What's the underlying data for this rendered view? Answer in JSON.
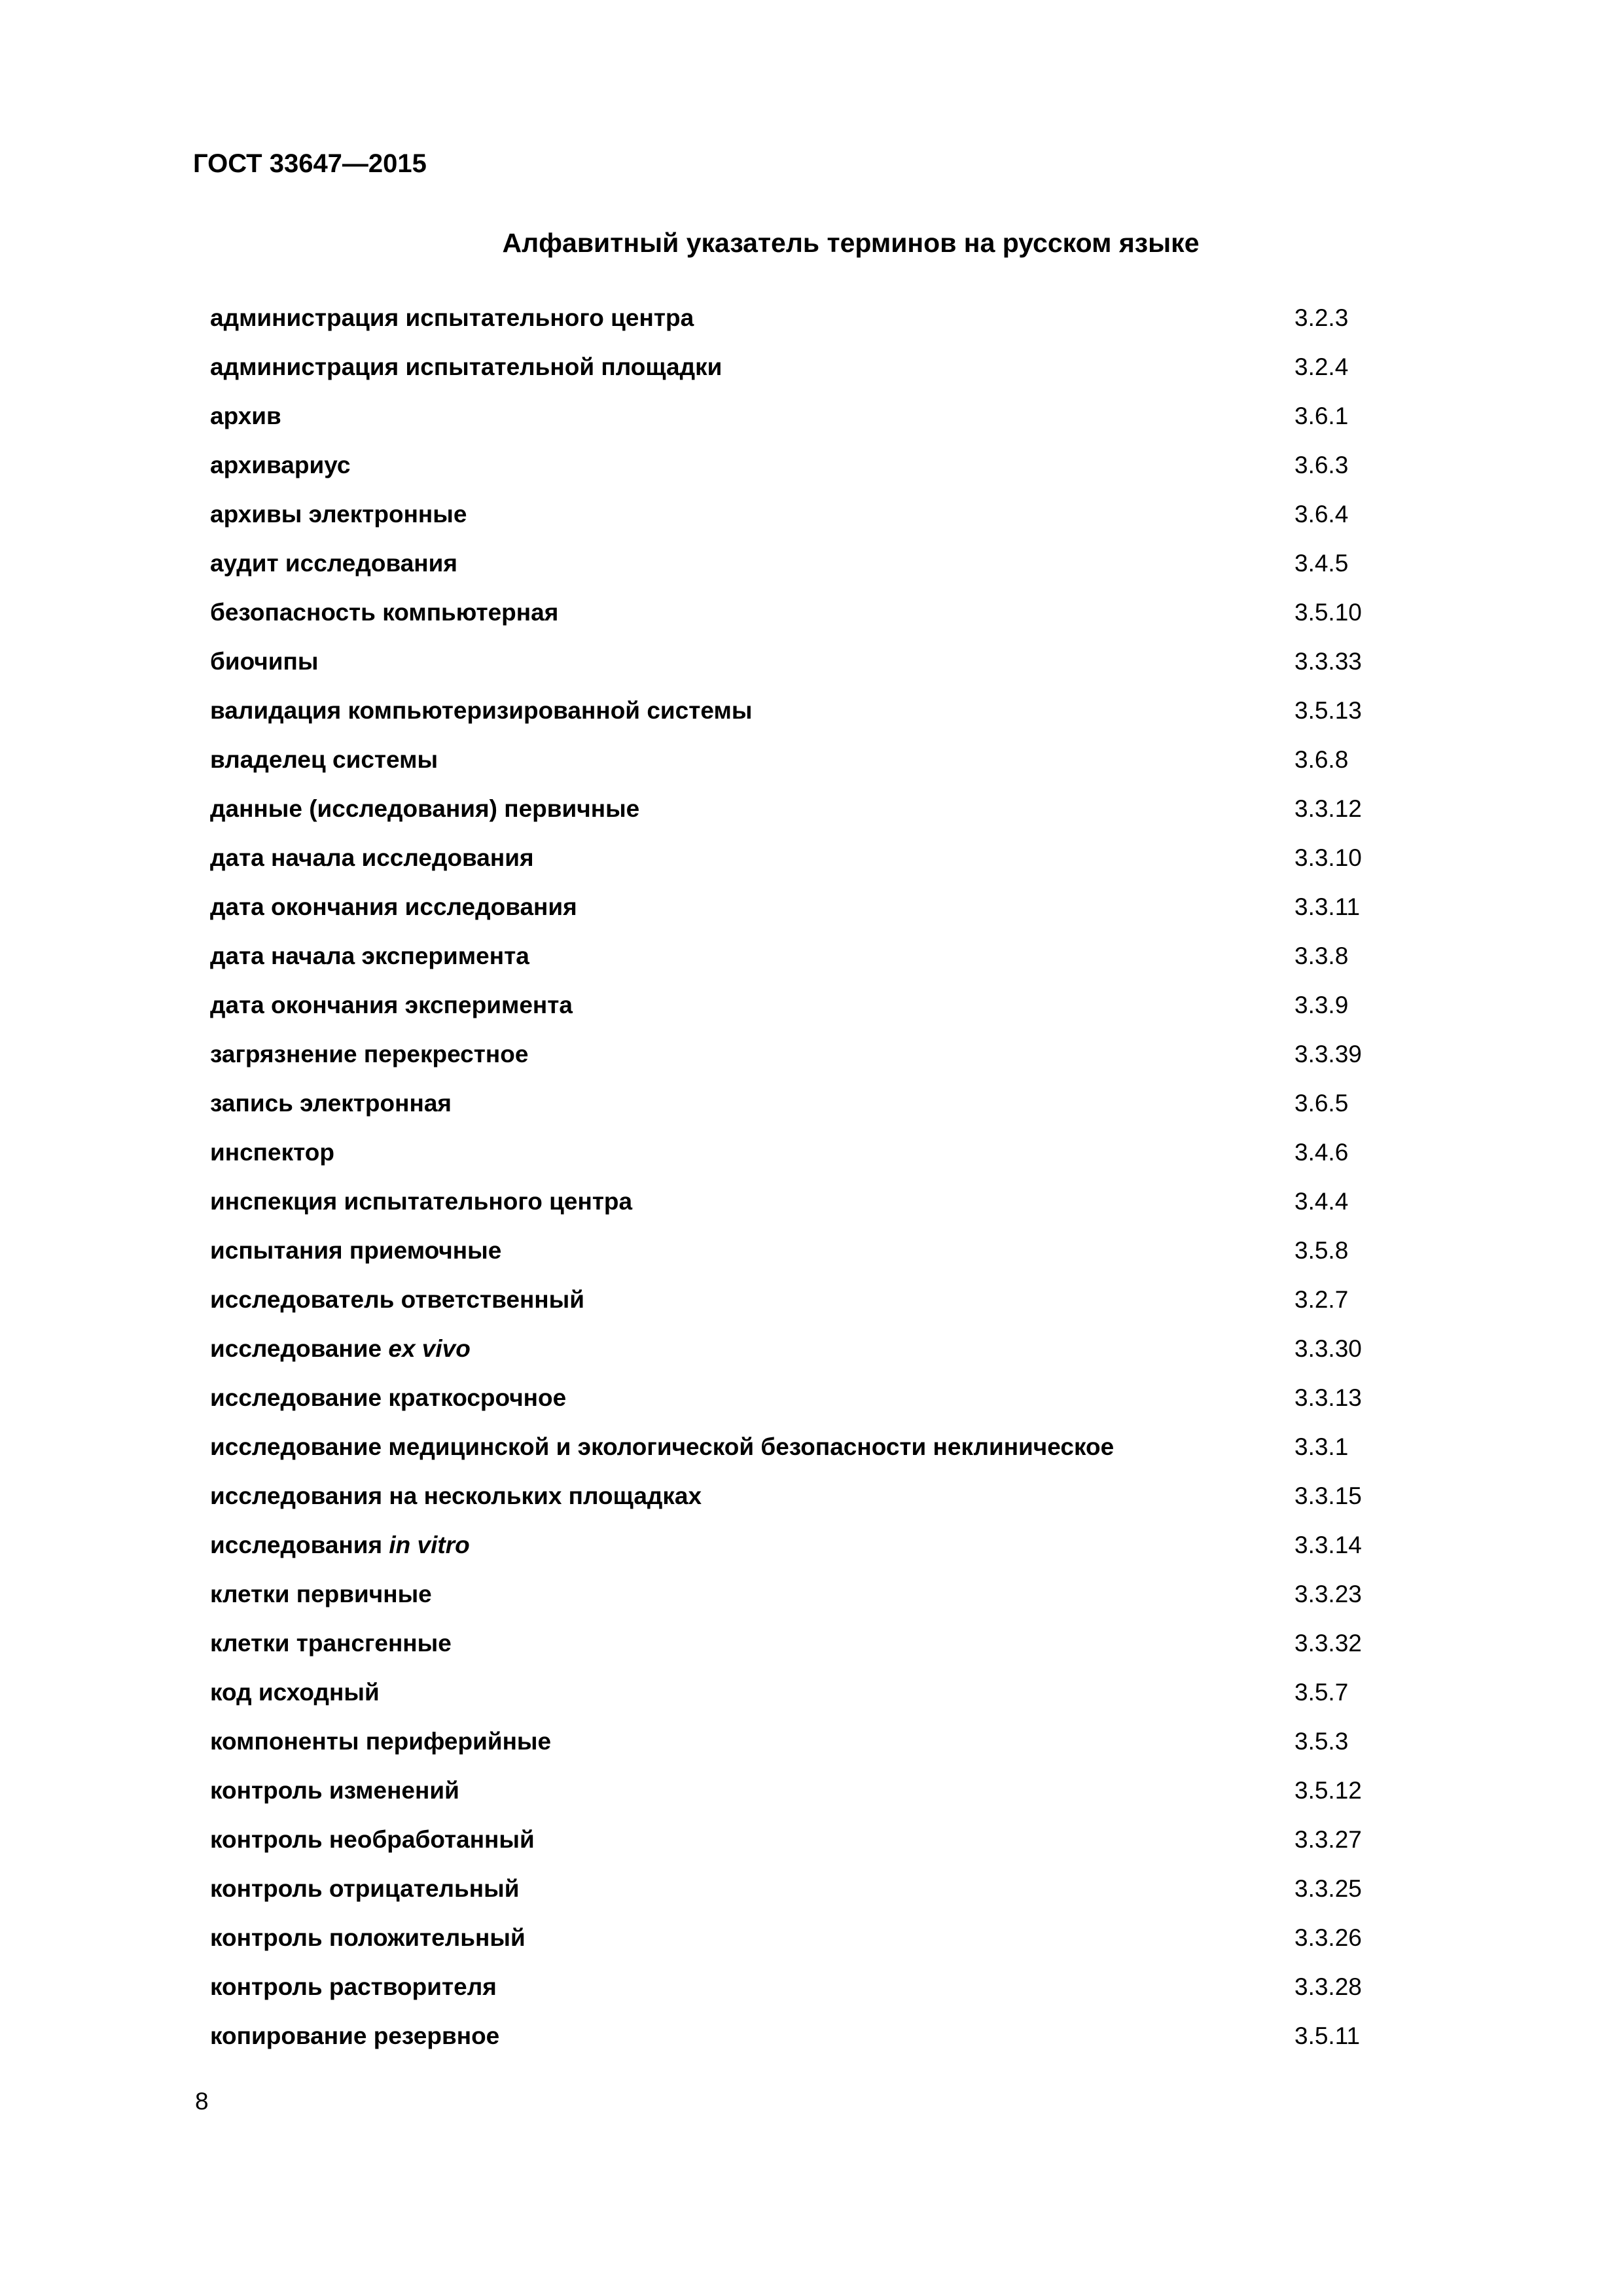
{
  "header": {
    "doc_code": "ГОСТ 33647—2015"
  },
  "title": "Алфавитный указатель терминов на русском языке",
  "entries": [
    {
      "term": "администрация испытательного центра",
      "ref": "3.2.3"
    },
    {
      "term": "администрация испытательной площадки",
      "ref": "3.2.4"
    },
    {
      "term": "архив",
      "ref": "3.6.1"
    },
    {
      "term": "архивариус",
      "ref": "3.6.3"
    },
    {
      "term": "архивы электронные",
      "ref": "3.6.4"
    },
    {
      "term": "аудит исследования",
      "ref": "3.4.5"
    },
    {
      "term": "безопасность компьютерная",
      "ref": "3.5.10"
    },
    {
      "term": "биочипы",
      "ref": "3.3.33"
    },
    {
      "term": "валидация компьютеризированной системы",
      "ref": "3.5.13"
    },
    {
      "term": "владелец системы",
      "ref": "3.6.8"
    },
    {
      "term": "данные (исследования) первичные",
      "ref": "3.3.12"
    },
    {
      "term": "дата начала исследования",
      "ref": "3.3.10"
    },
    {
      "term": "дата окончания исследования",
      "ref": "3.3.11"
    },
    {
      "term": "дата начала эксперимента",
      "ref": "3.3.8"
    },
    {
      "term": "дата окончания эксперимента",
      "ref": "3.3.9"
    },
    {
      "term": "загрязнение перекрестное",
      "ref": "3.3.39"
    },
    {
      "term": "запись электронная",
      "ref": "3.6.5"
    },
    {
      "term": "инспектор",
      "ref": "3.4.6"
    },
    {
      "term": "инспекция испытательного центра",
      "ref": "3.4.4"
    },
    {
      "term": "испытания приемочные",
      "ref": "3.5.8"
    },
    {
      "term": "исследователь ответственный",
      "ref": "3.2.7"
    },
    {
      "term": "исследование ",
      "term_italic": "ex vivo",
      "ref": "3.3.30"
    },
    {
      "term": "исследование краткосрочное",
      "ref": "3.3.13"
    },
    {
      "term": "исследование медицинской и экологической безопасности неклиническое",
      "ref": "3.3.1"
    },
    {
      "term": "исследования на нескольких площадках",
      "ref": "3.3.15"
    },
    {
      "term": "исследования ",
      "term_italic": "in vitro",
      "ref": "3.3.14"
    },
    {
      "term": "клетки первичные",
      "ref": "3.3.23"
    },
    {
      "term": "клетки трансгенные",
      "ref": "3.3.32"
    },
    {
      "term": "код исходный",
      "ref": "3.5.7"
    },
    {
      "term": "компоненты периферийные",
      "ref": "3.5.3"
    },
    {
      "term": "контроль изменений",
      "ref": "3.5.12"
    },
    {
      "term": "контроль необработанный",
      "ref": "3.3.27"
    },
    {
      "term": "контроль отрицательный",
      "ref": "3.3.25"
    },
    {
      "term": "контроль положительный",
      "ref": "3.3.26"
    },
    {
      "term": "контроль растворителя",
      "ref": "3.3.28"
    },
    {
      "term": "копирование резервное",
      "ref": "3.5.11"
    }
  ],
  "footer": {
    "page_number": "8"
  }
}
